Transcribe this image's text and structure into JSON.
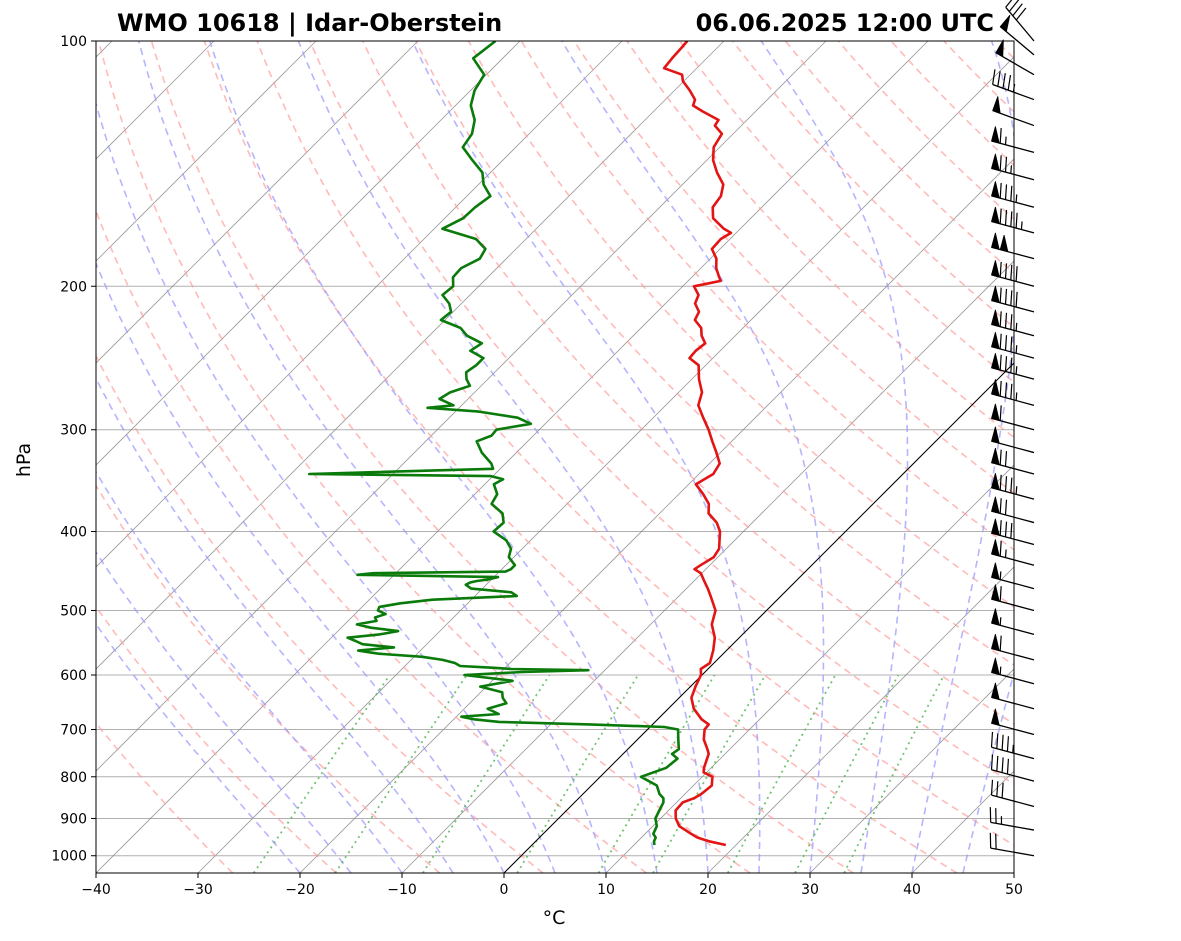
{
  "header": {
    "station": "WMO 10618 | Idar-Oberstein",
    "datetime": "06.06.2025 12:00 UTC"
  },
  "chart_data": {
    "type": "line",
    "title": "WMO 10618 | Idar-Oberstein",
    "subtitle": "06.06.2025 12:00 UTC",
    "xlabel": "°C",
    "ylabel": "hPa",
    "xlim": [
      -40,
      50
    ],
    "ylim": [
      1050,
      100
    ],
    "yscale": "log",
    "skew": "45 degrees",
    "x_ticks": [
      "−40",
      "−30",
      "−20",
      "−10",
      "0",
      "10",
      "20",
      "30",
      "40",
      "50"
    ],
    "y_ticks": [
      "1000",
      "900",
      "800",
      "700",
      "600",
      "500",
      "400",
      "300",
      "200",
      "100"
    ],
    "grid": true,
    "colors": {
      "temperature": "#e31414",
      "dewpoint": "#0a7a0a",
      "isotherm": "#808080",
      "dry_adiabat": "#ff9c9c",
      "moist_adiabat": "#9c9cff",
      "mixing_ratio": "#5cb85c",
      "zero_isotherm": "#000000",
      "isobar": "#b0b0b0"
    },
    "series": [
      {
        "name": "temperature",
        "p": [
          970,
          960,
          950,
          940,
          920,
          900,
          880,
          860,
          850,
          840,
          820,
          800,
          790,
          780,
          760,
          750,
          740,
          720,
          700,
          690,
          680,
          660,
          640,
          620,
          600,
          590,
          580,
          560,
          540,
          520,
          500,
          480,
          470,
          460,
          450,
          445,
          440,
          430,
          420,
          400,
          390,
          380,
          370,
          360,
          350,
          340,
          330,
          320,
          310,
          300,
          290,
          280,
          270,
          260,
          250,
          245,
          240,
          235,
          230,
          225,
          220,
          215,
          210,
          205,
          200,
          197,
          195,
          190,
          185,
          180,
          175,
          172,
          170,
          165,
          160,
          155,
          150,
          145,
          140,
          135,
          130,
          127,
          125,
          122,
          120,
          118,
          115,
          112,
          110,
          108,
          105,
          102,
          100
        ],
        "t": [
          19.0,
          17.0,
          15.5,
          14.5,
          12.6,
          11.5,
          10.7,
          10.6,
          11.3,
          11.6,
          11.8,
          11.0,
          9.7,
          9.3,
          8.7,
          8.4,
          7.8,
          6.5,
          5.6,
          5.5,
          4.3,
          2.5,
          1.2,
          0.5,
          -0.1,
          -0.7,
          -0.4,
          -1.3,
          -2.4,
          -4.0,
          -5.0,
          -6.9,
          -7.9,
          -9.0,
          -10.1,
          -11.1,
          -10.9,
          -10.4,
          -10.7,
          -12.3,
          -13.5,
          -15.2,
          -16.1,
          -17.6,
          -19.3,
          -18.6,
          -19.0,
          -20.4,
          -21.9,
          -23.4,
          -25.1,
          -26.8,
          -27.7,
          -29.3,
          -30.7,
          -32.3,
          -32.4,
          -32.2,
          -33.3,
          -34.1,
          -35.5,
          -35.9,
          -37.1,
          -37.6,
          -38.9,
          -36.8,
          -37.3,
          -38.5,
          -39.4,
          -40.8,
          -40.9,
          -40.5,
          -41.6,
          -43.7,
          -44.8,
          -45.1,
          -46.0,
          -47.8,
          -49.4,
          -50.6,
          -51.1,
          -52.6,
          -52.8,
          -55.2,
          -56.7,
          -57.1,
          -58.5,
          -60.1,
          -60.8,
          -63.2,
          -63.4,
          -63.5,
          -63.6
        ]
      },
      {
        "name": "dewpoint",
        "p": [
          970,
          960,
          950,
          940,
          920,
          900,
          880,
          860,
          850,
          840,
          820,
          800,
          790,
          780,
          760,
          750,
          740,
          720,
          700,
          695,
          690,
          685,
          680,
          675,
          670,
          660,
          650,
          640,
          630,
          620,
          610,
          600,
          595,
          592,
          590,
          588,
          585,
          580,
          575,
          570,
          565,
          560,
          555,
          550,
          545,
          540,
          535,
          530,
          525,
          520,
          515,
          510,
          505,
          500,
          495,
          490,
          485,
          480,
          475,
          470,
          465,
          462,
          460,
          458,
          455,
          452,
          450,
          448,
          445,
          440,
          430,
          420,
          410,
          400,
          390,
          380,
          370,
          360,
          350,
          345,
          342,
          340,
          335,
          330,
          320,
          310,
          305,
          300,
          295,
          290,
          285,
          282,
          280,
          275,
          270,
          265,
          260,
          255,
          250,
          245,
          240,
          235,
          230,
          225,
          220,
          215,
          210,
          205,
          200,
          195,
          190,
          185,
          180,
          175,
          170,
          165,
          160,
          155,
          150,
          145,
          140,
          135,
          130,
          125,
          120,
          115,
          110,
          105,
          100
        ],
        "t": [
          12.0,
          11.6,
          11.4,
          10.8,
          10.4,
          9.5,
          9.1,
          8.7,
          8.3,
          7.5,
          6.4,
          4.0,
          4.8,
          5.6,
          5.8,
          4.8,
          5.0,
          4.0,
          3.0,
          1.4,
          -6.2,
          -15.3,
          -18.0,
          -19.5,
          -16.1,
          -17.7,
          -16.4,
          -17.3,
          -17.9,
          -20.6,
          -18.0,
          -23.3,
          -17.9,
          -11.6,
          -19.3,
          -21.1,
          -24.6,
          -25.4,
          -26.9,
          -29.2,
          -33.8,
          -36.1,
          -32.9,
          -36.3,
          -37.3,
          -38.4,
          -35.6,
          -34.1,
          -37.1,
          -38.8,
          -37.2,
          -37.7,
          -37.0,
          -38.1,
          -38.3,
          -36.6,
          -33.8,
          -25.9,
          -26.8,
          -31.1,
          -32.0,
          -31.8,
          -31.3,
          -30.3,
          -29.6,
          -43.6,
          -42.2,
          -29.4,
          -29.1,
          -29.1,
          -30.5,
          -31.1,
          -32.4,
          -34.5,
          -34.4,
          -35.4,
          -37.4,
          -37.8,
          -39.1,
          -38.7,
          -40.2,
          -58.2,
          -40.7,
          -41.4,
          -43.4,
          -45.0,
          -44.1,
          -44.2,
          -41.4,
          -43.3,
          -47.7,
          -53.1,
          -50.8,
          -52.8,
          -52.4,
          -51.1,
          -52.1,
          -52.8,
          -52.5,
          -52.5,
          -54.5,
          -54.1,
          -56.3,
          -57.7,
          -60.4,
          -60.2,
          -61.2,
          -62.7,
          -62.5,
          -63.4,
          -63.5,
          -62.6,
          -63.0,
          -64.9,
          -69.2,
          -68.2,
          -68.1,
          -67.7,
          -69.5,
          -70.8,
          -73.0,
          -75.2,
          -75.6,
          -76.7,
          -78.5,
          -79.6,
          -80.2,
          -82.9,
          -82.4
        ]
      }
    ],
    "wind_barbs": {
      "p": [
        1000,
        930,
        870,
        810,
        760,
        710,
        660,
        615,
        575,
        535,
        500,
        470,
        440,
        415,
        390,
        365,
        340,
        320,
        300,
        280,
        260,
        245,
        230,
        215,
        200,
        185,
        172,
        160,
        148,
        137,
        127,
        118,
        110,
        104,
        100
      ],
      "speed_kt": [
        20,
        25,
        30,
        40,
        45,
        50,
        50,
        55,
        60,
        55,
        60,
        55,
        65,
        80,
        70,
        85,
        70,
        50,
        60,
        85,
        85,
        85,
        85,
        90,
        90,
        100,
        95,
        85,
        75,
        65,
        50,
        45,
        50,
        50,
        40
      ],
      "direction": [
        280,
        280,
        285,
        285,
        285,
        285,
        285,
        285,
        285,
        285,
        285,
        285,
        285,
        285,
        285,
        285,
        285,
        285,
        285,
        285,
        285,
        285,
        285,
        285,
        285,
        285,
        285,
        285,
        285,
        285,
        290,
        290,
        300,
        310,
        320
      ]
    }
  }
}
